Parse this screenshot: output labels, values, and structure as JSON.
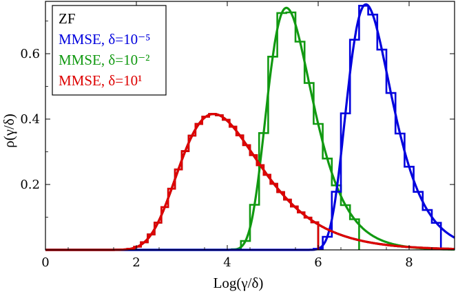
{
  "chart_data": {
    "type": "line",
    "xlabel": "Log(γ/δ)",
    "ylabel": "ρ(γ/δ)",
    "xlim": [
      0,
      9
    ],
    "ylim": [
      0,
      0.76
    ],
    "xticks": [
      0,
      2,
      4,
      6,
      8
    ],
    "xtick_labels": [
      "0",
      "2",
      "4",
      "6",
      "8"
    ],
    "yticks": [
      0.2,
      0.4,
      0.6
    ],
    "ytick_labels": [
      "0.2",
      "0.4",
      "0.6"
    ],
    "grid": false,
    "legend_position": "top-left",
    "legend": [
      {
        "label": "ZF",
        "color": "#000000"
      },
      {
        "label": "MMSE, δ=10⁻⁵",
        "color": "#0000dd"
      },
      {
        "label": "MMSE, δ=10⁻²",
        "color": "#119911"
      },
      {
        "label": "MMSE, δ=10¹",
        "color": "#dd0000"
      }
    ],
    "series": [
      {
        "name": "ZF",
        "color": "#000000",
        "style": "histogram-and-fit",
        "density": "gumbel",
        "mode": 3.7,
        "scale": 0.885,
        "hist_range": [
          0.6,
          6.0
        ],
        "bin_width": 0.15
      },
      {
        "name": "MMSE, δ=10⁻²",
        "color": "#119911",
        "style": "histogram-and-fit",
        "density": "gumbel",
        "mode": 5.3,
        "scale": 0.497,
        "hist_range": [
          3.5,
          6.9
        ],
        "bin_width": 0.2
      },
      {
        "name": "MMSE, δ=10⁻⁵",
        "color": "#0000dd",
        "style": "histogram-and-fit",
        "density": "gumbel",
        "mode": 7.05,
        "scale": 0.49,
        "hist_range": [
          5.3,
          8.7
        ],
        "bin_width": 0.2
      },
      {
        "name": "MMSE, δ=10¹",
        "color": "#dd0000",
        "style": "histogram-and-fit",
        "density": "gumbel",
        "mode": 3.7,
        "scale": 0.885,
        "hist_range": [
          0.6,
          6.0
        ],
        "bin_width": 0.15
      }
    ]
  }
}
